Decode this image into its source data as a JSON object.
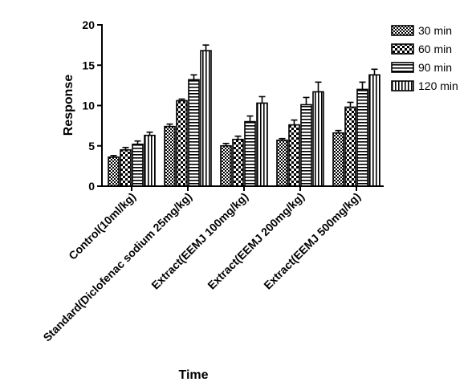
{
  "chart_data": {
    "type": "bar",
    "xlabel": "Time",
    "ylabel": "Response",
    "ylim": [
      0,
      20
    ],
    "yticks": [
      0,
      5,
      10,
      15,
      20
    ],
    "grid": false,
    "legend_position": "top-right",
    "error_bars": true,
    "categories": [
      "Control(10ml/kg)",
      "Standard(Diclofenac sodium 25mg/kg)",
      "Extract(EEMJ 100mg/kg)",
      "Extract(EEMJ 200mg/kg)",
      "Extract(EEMJ 500mg/kg)"
    ],
    "series": [
      {
        "name": "30 min",
        "pattern": "checker",
        "values": [
          3.6,
          7.4,
          5.0,
          5.7,
          6.6
        ],
        "errors": [
          0.2,
          0.3,
          0.3,
          0.2,
          0.3
        ]
      },
      {
        "name": "60 min",
        "pattern": "checker-large",
        "values": [
          4.5,
          10.6,
          5.8,
          7.6,
          9.8
        ],
        "errors": [
          0.3,
          0.2,
          0.4,
          0.6,
          0.6
        ]
      },
      {
        "name": "90 min",
        "pattern": "hstripe",
        "values": [
          5.2,
          13.2,
          8.0,
          10.1,
          12.0
        ],
        "errors": [
          0.4,
          0.6,
          0.7,
          0.9,
          0.9
        ]
      },
      {
        "name": "120 min",
        "pattern": "vstripe",
        "values": [
          6.3,
          16.8,
          10.3,
          11.7,
          13.8
        ],
        "errors": [
          0.4,
          0.7,
          0.8,
          1.2,
          0.7
        ]
      }
    ]
  }
}
